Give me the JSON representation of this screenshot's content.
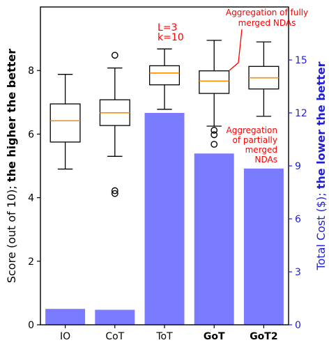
{
  "chart_data": {
    "type": "bar+box",
    "categories": [
      "IO",
      "CoT",
      "ToT",
      "GoT",
      "GoT2"
    ],
    "bold_categories": [
      "GoT",
      "GoT2"
    ],
    "left_axis": {
      "label_prefix": "Score (out of 10); ",
      "label_bold": "the higher the better",
      "range": [
        0,
        10
      ],
      "ticks": [
        0,
        2,
        4,
        6,
        8
      ],
      "color": "#000000"
    },
    "right_axis": {
      "label_prefix": "Total Cost ($); ",
      "label_bold": "the lower the better",
      "range": [
        0,
        18
      ],
      "ticks": [
        0,
        3,
        6,
        9,
        12,
        15
      ],
      "color": "#1f1fd8"
    },
    "cost_bars": {
      "color": "#7b7bff",
      "values": [
        0.9,
        0.85,
        12.0,
        9.7,
        8.85
      ]
    },
    "scores": [
      {
        "whislo": 4.9,
        "q1": 5.75,
        "med": 6.42,
        "q3": 6.95,
        "whishi": 7.88,
        "fliers": []
      },
      {
        "whislo": 5.3,
        "q1": 6.27,
        "med": 6.67,
        "q3": 7.08,
        "whishi": 8.08,
        "fliers": [
          8.48,
          4.22,
          4.13
        ]
      },
      {
        "whislo": 6.78,
        "q1": 7.55,
        "med": 7.92,
        "q3": 8.15,
        "whishi": 8.68,
        "fliers": []
      },
      {
        "whislo": 6.25,
        "q1": 7.28,
        "med": 7.67,
        "q3": 7.99,
        "whishi": 8.95,
        "fliers": [
          6.12,
          5.98,
          5.68
        ]
      },
      {
        "whislo": 6.56,
        "q1": 7.42,
        "med": 7.77,
        "q3": 8.13,
        "whishi": 8.9,
        "fliers": []
      }
    ],
    "annotations": {
      "tot_params": [
        "L=3",
        "k=10"
      ],
      "fully_merged": [
        "Aggregation of fully",
        "merged NDAs"
      ],
      "partially_merged": [
        "Aggregation",
        "of partially",
        "merged",
        "NDAs"
      ]
    },
    "annotation_color": "#ff0000",
    "median_color": "#ff8c00"
  }
}
